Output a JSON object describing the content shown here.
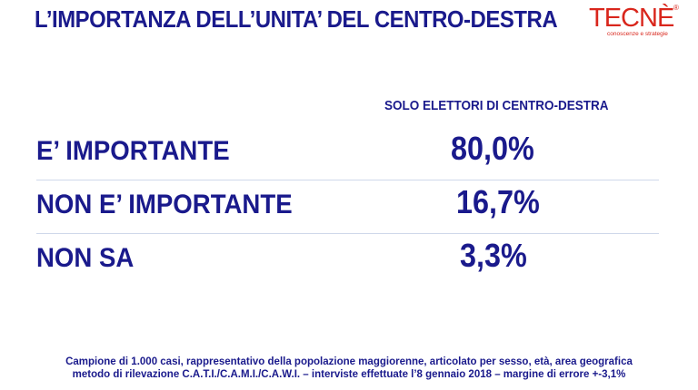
{
  "header": {
    "title": "L’IMPORTANZA DELL’UNITA’ DEL CENTRO-DESTRA"
  },
  "logo": {
    "name": "TECNÈ",
    "registered": "®",
    "tagline": "conoscenze e strategie"
  },
  "table": {
    "column_header": "SOLO ELETTORI DI CENTRO-DESTRA",
    "rows": [
      {
        "label": "E’ IMPORTANTE",
        "value": "80,0%"
      },
      {
        "label": "NON E’ IMPORTANTE",
        "value": "16,7%"
      },
      {
        "label": "NON SA",
        "value": "3,3%"
      }
    ]
  },
  "footer": {
    "line1": "Campione di 1.000 casi, rappresentativo della popolazione maggiorenne, articolato per sesso, età, area geografica",
    "line2": "metodo di rilevazione C.A.T.I./C.A.M.I./C.A.W.I. – interviste effettuate l’8 gennaio 2018 – margine di errore +-3,1%"
  },
  "colors": {
    "text": "#1a1a8c",
    "logo": "#d9261c",
    "divider": "#cfd8ea"
  }
}
